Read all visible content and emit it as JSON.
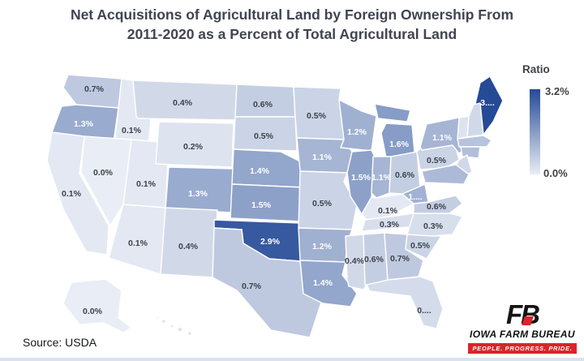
{
  "title": {
    "line1": "Net Acquisitions of Agricultural Land by Foreign Ownership From",
    "line2": "2011-2020 as a Percent of Total Agricultural Land"
  },
  "legend": {
    "title": "Ratio",
    "max_label": "3.2%",
    "min_label": "0.0%"
  },
  "source": "Source: USDA",
  "logo": {
    "monogram": "FB",
    "name": "IOWA FARM BUREAU",
    "tagline": "PEOPLE. PROGRESS. PRIDE."
  },
  "color_scale": {
    "min_value": 0.0,
    "max_value": 3.2,
    "min_hex": "#e9edf5",
    "max_hex": "#254a96"
  },
  "chart_data": {
    "type": "choropleth",
    "title": "Net Acquisitions of Agricultural Land by Foreign Ownership From 2011-2020 as a Percent of Total Agricultural Land",
    "unit": "percent of total agricultural land",
    "legend": {
      "title": "Ratio",
      "min": "0.0%",
      "max": "3.2%"
    },
    "states": [
      {
        "state": "Washington",
        "abbr": "WA",
        "label": "0.7%",
        "value": 0.7
      },
      {
        "state": "Oregon",
        "abbr": "OR",
        "label": "1.3%",
        "value": 1.3
      },
      {
        "state": "California",
        "abbr": "CA",
        "label": "0.1%",
        "value": 0.1
      },
      {
        "state": "Idaho",
        "abbr": "ID",
        "label": "0.1%",
        "value": 0.1
      },
      {
        "state": "Nevada",
        "abbr": "NV",
        "label": "0.0%",
        "value": 0.0
      },
      {
        "state": "Utah",
        "abbr": "UT",
        "label": "0.1%",
        "value": 0.1
      },
      {
        "state": "Arizona",
        "abbr": "AZ",
        "label": "0.1%",
        "value": 0.1
      },
      {
        "state": "Montana",
        "abbr": "MT",
        "label": "0.4%",
        "value": 0.4
      },
      {
        "state": "Wyoming",
        "abbr": "WY",
        "label": "0.2%",
        "value": 0.2
      },
      {
        "state": "Colorado",
        "abbr": "CO",
        "label": "1.3%",
        "value": 1.3
      },
      {
        "state": "New Mexico",
        "abbr": "NM",
        "label": "0.4%",
        "value": 0.4
      },
      {
        "state": "North Dakota",
        "abbr": "ND",
        "label": "0.6%",
        "value": 0.6
      },
      {
        "state": "South Dakota",
        "abbr": "SD",
        "label": "0.5%",
        "value": 0.5
      },
      {
        "state": "Nebraska",
        "abbr": "NE",
        "label": "1.4%",
        "value": 1.4
      },
      {
        "state": "Kansas",
        "abbr": "KS",
        "label": "1.5%",
        "value": 1.5
      },
      {
        "state": "Oklahoma",
        "abbr": "OK",
        "label": "2.9%",
        "value": 2.9
      },
      {
        "state": "Texas",
        "abbr": "TX",
        "label": "0.7%",
        "value": 0.7
      },
      {
        "state": "Minnesota",
        "abbr": "MN",
        "label": "0.5%",
        "value": 0.5
      },
      {
        "state": "Iowa",
        "abbr": "IA",
        "label": "1.1%",
        "value": 1.1
      },
      {
        "state": "Missouri",
        "abbr": "MO",
        "label": "0.5%",
        "value": 0.5
      },
      {
        "state": "Arkansas",
        "abbr": "AR",
        "label": "1.2%",
        "value": 1.2
      },
      {
        "state": "Louisiana",
        "abbr": "LA",
        "label": "1.4%",
        "value": 1.4
      },
      {
        "state": "Wisconsin",
        "abbr": "WI",
        "label": "1.2%",
        "value": 1.2
      },
      {
        "state": "Illinois",
        "abbr": "IL",
        "label": "1.5%",
        "value": 1.5
      },
      {
        "state": "Michigan",
        "abbr": "MI",
        "label": "1.6%",
        "value": 1.6
      },
      {
        "state": "Indiana",
        "abbr": "IN",
        "label": "1.1%",
        "value": 1.1
      },
      {
        "state": "Ohio",
        "abbr": "OH",
        "label": "0.6%",
        "value": 0.6
      },
      {
        "state": "Kentucky",
        "abbr": "KY",
        "label": "0.1%",
        "value": 0.1
      },
      {
        "state": "Tennessee",
        "abbr": "TN",
        "label": "0.3%",
        "value": 0.3
      },
      {
        "state": "Mississippi",
        "abbr": "MS",
        "label": "0.4%",
        "value": 0.4
      },
      {
        "state": "Alabama",
        "abbr": "AL",
        "label": "0.6%",
        "value": 0.6
      },
      {
        "state": "Georgia",
        "abbr": "GA",
        "label": "0.7%",
        "value": 0.7
      },
      {
        "state": "Florida",
        "abbr": "FL",
        "label": "0....",
        "value": null
      },
      {
        "state": "South Carolina",
        "abbr": "SC",
        "label": "0.5%",
        "value": 0.5
      },
      {
        "state": "North Carolina",
        "abbr": "NC",
        "label": "0.3%",
        "value": 0.3
      },
      {
        "state": "Virginia",
        "abbr": "VA",
        "label": "0.6%",
        "value": 0.6
      },
      {
        "state": "West Virginia",
        "abbr": "WV",
        "label": "1....",
        "value": null
      },
      {
        "state": "Pennsylvania",
        "abbr": "PA",
        "label": "0.5%",
        "value": 0.5
      },
      {
        "state": "New York",
        "abbr": "NY",
        "label": "1.1%",
        "value": 1.1
      },
      {
        "state": "Maine",
        "abbr": "ME",
        "label": "3....",
        "value": null
      },
      {
        "state": "Alaska",
        "abbr": "AK",
        "label": "0.0%",
        "value": 0.0
      }
    ]
  }
}
